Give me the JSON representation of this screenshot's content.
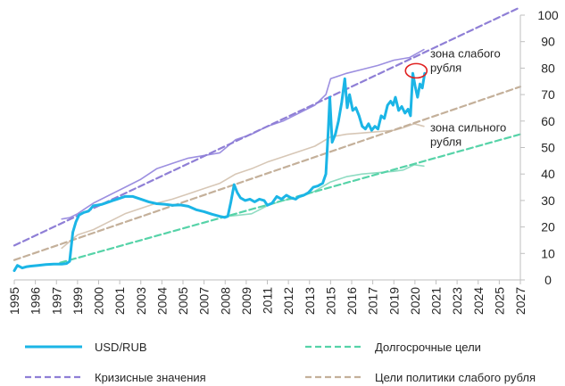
{
  "chart_data": {
    "type": "line",
    "x_ticks": [
      "1995",
      "1996",
      "1997",
      "1999",
      "2000",
      "2001",
      "2003",
      "2004",
      "2005",
      "2007",
      "2008",
      "2009",
      "2011",
      "2012",
      "2013",
      "2015",
      "2016",
      "2017",
      "2019",
      "2020",
      "2021",
      "2023",
      "2024",
      "2025",
      "2027"
    ],
    "y_ticks": [
      "0",
      "10",
      "20",
      "30",
      "40",
      "50",
      "60",
      "70",
      "80",
      "90",
      "100"
    ],
    "xlim": [
      1995.0,
      2027.0
    ],
    "ylim": [
      0,
      100
    ],
    "grid": false,
    "legend_position": "bottom",
    "annotations": [
      {
        "lines": [
          "зона слабого",
          "рубля"
        ],
        "x": 2021.3,
        "y": 84
      },
      {
        "lines": [
          "зона сильного",
          "рубля"
        ],
        "x": 2021.3,
        "y": 56
      }
    ],
    "highlight": {
      "shape": "ellipse",
      "x": 2020.3,
      "y": 79
    },
    "series": [
      {
        "name": "USD/RUB",
        "color": "#1bb5e6",
        "style": "solid",
        "x": [
          1995.0,
          1995.2,
          1995.5,
          1995.8,
          1996.0,
          1996.5,
          1997.0,
          1997.5,
          1998.0,
          1998.3,
          1998.5,
          1998.7,
          1998.9,
          1999.1,
          1999.4,
          1999.7,
          2000.0,
          2000.5,
          2001.0,
          2001.5,
          2002.0,
          2002.5,
          2003.0,
          2003.5,
          2004.0,
          2004.5,
          2005.0,
          2005.5,
          2006.0,
          2006.5,
          2007.0,
          2007.5,
          2008.0,
          2008.3,
          2008.5,
          2008.7,
          2008.9,
          2009.1,
          2009.3,
          2009.6,
          2009.9,
          2010.2,
          2010.5,
          2010.8,
          2011.0,
          2011.3,
          2011.6,
          2011.9,
          2012.2,
          2012.5,
          2012.8,
          2013.0,
          2013.3,
          2013.6,
          2013.9,
          2014.2,
          2014.5,
          2014.7,
          2014.85,
          2014.95,
          2015.1,
          2015.3,
          2015.5,
          2015.7,
          2015.9,
          2016.05,
          2016.2,
          2016.4,
          2016.6,
          2016.8,
          2017.0,
          2017.2,
          2017.4,
          2017.6,
          2017.8,
          2018.0,
          2018.2,
          2018.4,
          2018.6,
          2018.8,
          2018.95,
          2019.1,
          2019.3,
          2019.5,
          2019.7,
          2019.9,
          2020.05,
          2020.2,
          2020.35,
          2020.5,
          2020.65,
          2020.8,
          2020.95
        ],
        "y": [
          3.5,
          5.5,
          4.5,
          5.0,
          5.2,
          5.5,
          5.8,
          6.0,
          6.0,
          6.2,
          7.0,
          18.0,
          22.0,
          24.5,
          25.5,
          26.0,
          28.0,
          28.5,
          29.5,
          30.5,
          31.5,
          31.5,
          30.5,
          29.5,
          28.8,
          28.6,
          28.2,
          28.3,
          27.8,
          26.5,
          25.8,
          24.8,
          24.0,
          23.6,
          24.0,
          29.5,
          36.0,
          33.0,
          31.0,
          30.0,
          30.5,
          29.5,
          30.5,
          30.0,
          28.2,
          29.0,
          31.5,
          30.5,
          32.0,
          31.0,
          30.5,
          31.5,
          32.0,
          33.0,
          35.0,
          35.5,
          36.5,
          40.0,
          56.0,
          69.0,
          52.0,
          55.0,
          60.0,
          67.0,
          76.0,
          65.0,
          70.0,
          64.0,
          65.0,
          62.0,
          58.0,
          57.0,
          59.0,
          56.5,
          58.0,
          57.0,
          62.0,
          61.0,
          66.0,
          67.5,
          66.0,
          69.0,
          64.0,
          65.5,
          63.0,
          64.5,
          62.0,
          78.0,
          73.0,
          69.0,
          74.0,
          72.5,
          78.0
        ]
      },
      {
        "name": "Долгосрочные цели",
        "color": "#56d3a8",
        "style": "dashed",
        "x": [
          1997.9,
          2027.0
        ],
        "y": [
          6.5,
          55.0
        ]
      },
      {
        "name": "Кризисные значения",
        "color": "#8f7fd6",
        "style": "dashed",
        "x": [
          1995.0,
          2027.0
        ],
        "y": [
          13.0,
          103.0
        ]
      },
      {
        "name": "Цели политики слабого рубля",
        "color": "#c4b09a",
        "style": "dashed",
        "x": [
          1995.0,
          2027.0
        ],
        "y": [
          7.5,
          73.0
        ]
      },
      {
        "name": "",
        "color": "#9c8fe0",
        "style": "solid",
        "x": [
          1998.0,
          1998.5,
          1999.0,
          1999.5,
          2000.0,
          2001.0,
          2002.0,
          2003.0,
          2004.0,
          2005.0,
          2006.0,
          2007.0,
          2008.0,
          2009.0,
          2010.0,
          2011.0,
          2012.0,
          2013.0,
          2014.0,
          2014.7,
          2015.0,
          2016.0,
          2017.0,
          2018.0,
          2019.0,
          2020.0,
          2020.9
        ],
        "y": [
          23.0,
          23.5,
          25.0,
          27.0,
          29.0,
          32.0,
          35.0,
          38.0,
          42.0,
          44.0,
          46.0,
          47.0,
          48.0,
          53.0,
          55.0,
          58.0,
          60.0,
          63.0,
          66.0,
          70.0,
          76.0,
          78.0,
          79.5,
          81.0,
          83.0,
          84.0,
          87.0
        ]
      },
      {
        "name": "",
        "color": "#d7c7b6",
        "style": "solid",
        "x": [
          1998.0,
          1999.0,
          2000.0,
          2001.0,
          2002.0,
          2003.0,
          2004.0,
          2005.0,
          2006.0,
          2007.0,
          2008.0,
          2009.0,
          2010.0,
          2011.0,
          2012.0,
          2013.0,
          2014.0,
          2015.0,
          2016.0,
          2017.0,
          2018.0,
          2019.0,
          2019.6,
          2020.3,
          2020.9
        ],
        "y": [
          12.0,
          17.0,
          19.0,
          22.0,
          25.0,
          27.0,
          29.0,
          30.5,
          32.5,
          34.5,
          36.5,
          40.0,
          42.0,
          44.5,
          46.5,
          48.5,
          50.5,
          54.0,
          55.0,
          55.5,
          56.0,
          56.5,
          57.5,
          59.0,
          58.0
        ]
      },
      {
        "name": "",
        "color": "#8fdcc2",
        "style": "solid",
        "x": [
          2008.5,
          2010.0,
          2011.0,
          2012.0,
          2013.0,
          2014.0,
          2015.0,
          2016.0,
          2017.0,
          2018.0,
          2019.0,
          2019.6,
          2020.3,
          2020.9
        ],
        "y": [
          24.0,
          25.0,
          28.0,
          30.0,
          31.0,
          33.5,
          37.0,
          39.0,
          40.0,
          40.5,
          41.0,
          41.5,
          43.5,
          43.0
        ]
      }
    ]
  }
}
